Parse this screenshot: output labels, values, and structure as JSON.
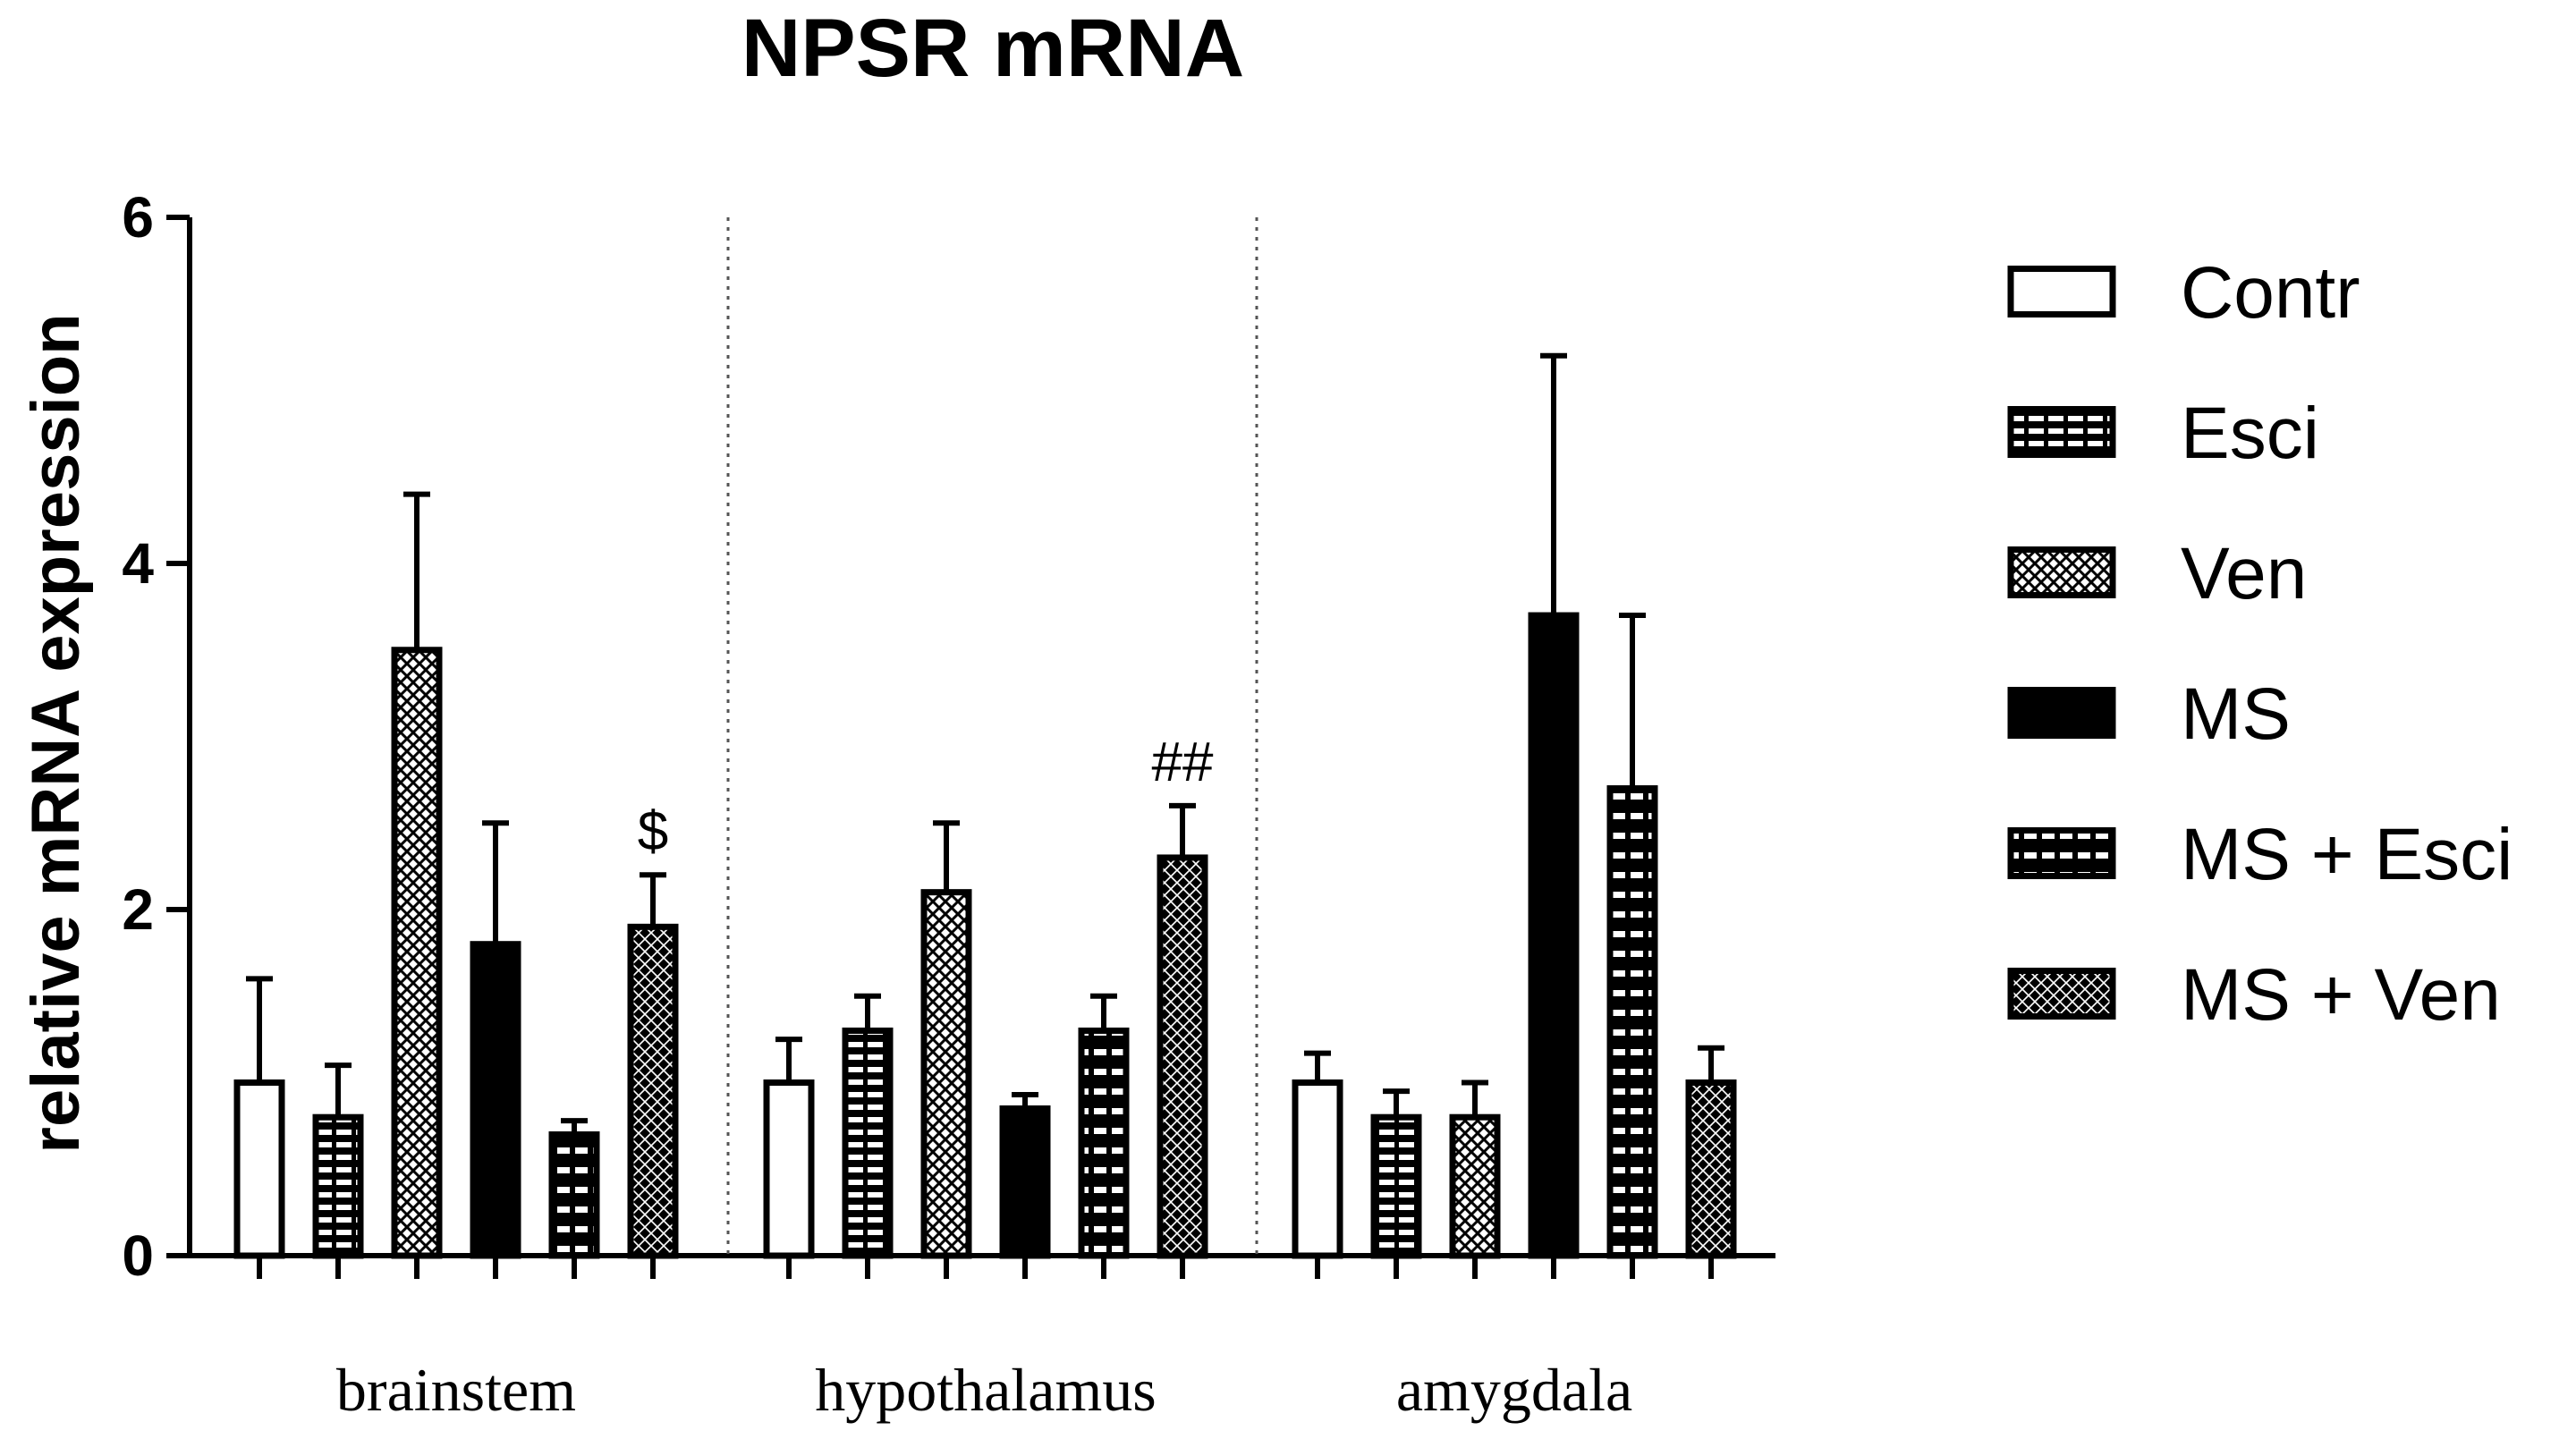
{
  "chart_data": {
    "type": "bar",
    "title": "NPSR mRNA",
    "xlabel": "",
    "ylabel": "relative mRNA expression",
    "ylim": [
      0,
      6
    ],
    "yticks": [
      0,
      2,
      4,
      6
    ],
    "grid": false,
    "legend_position": "right",
    "categories": [
      "brainstem",
      "hypothalamus",
      "amygdala"
    ],
    "series": [
      {
        "name": "Contr",
        "pattern": "open",
        "values": [
          1.0,
          1.0,
          1.0
        ],
        "errors": [
          0.6,
          0.25,
          0.17
        ]
      },
      {
        "name": "Esci",
        "pattern": "horizontal-dash",
        "values": [
          0.8,
          1.3,
          0.8
        ],
        "errors": [
          0.3,
          0.2,
          0.15
        ]
      },
      {
        "name": "Ven",
        "pattern": "light-diamond",
        "values": [
          3.5,
          2.1,
          0.8
        ],
        "errors": [
          0.9,
          0.4,
          0.2
        ]
      },
      {
        "name": "MS",
        "pattern": "solid",
        "values": [
          1.8,
          0.85,
          3.7
        ],
        "errors": [
          0.7,
          0.08,
          1.5
        ]
      },
      {
        "name": "MS + Esci",
        "pattern": "dark-blocks",
        "values": [
          0.7,
          1.3,
          2.7
        ],
        "errors": [
          0.08,
          0.2,
          1.0
        ]
      },
      {
        "name": "MS + Ven",
        "pattern": "dark-diamond",
        "values": [
          1.9,
          2.3,
          1.0
        ],
        "errors": [
          0.3,
          0.3,
          0.2
        ]
      }
    ],
    "annotations": [
      {
        "category": "brainstem",
        "series": "MS + Ven",
        "text": "$"
      },
      {
        "category": "hypothalamus",
        "series": "MS + Ven",
        "text": "##"
      }
    ]
  }
}
